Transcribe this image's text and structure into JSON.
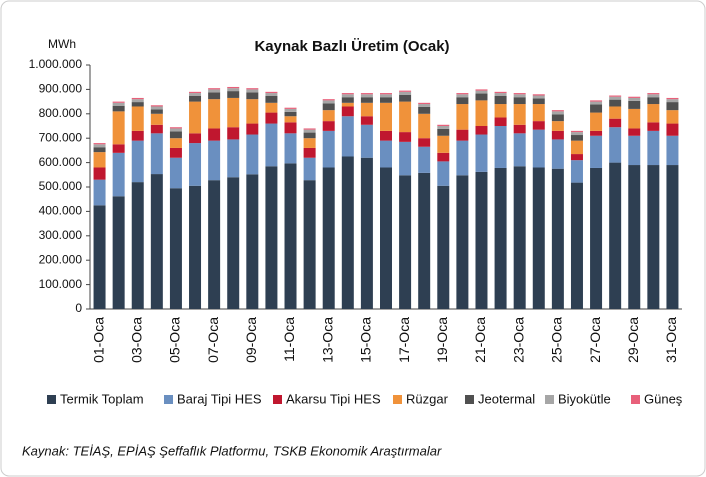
{
  "chart_data": {
    "type": "stacked_bar",
    "title": "Kaynak Bazlı Üretim (Ocak)",
    "y_axis_label": "MWh",
    "source": "Kaynak: TEİAŞ, EPİAŞ Şeffaflık Platformu, TSKB Ekonomik Araştırmalar",
    "categories": [
      "01-Oca",
      null,
      "03-Oca",
      null,
      "05-Oca",
      null,
      "07-Oca",
      null,
      "09-Oca",
      null,
      "11-Oca",
      null,
      "13-Oca",
      null,
      "15-Oca",
      null,
      "17-Oca",
      null,
      "19-Oca",
      null,
      "21-Oca",
      null,
      "23-Oca",
      null,
      "25-Oca",
      null,
      "27-Oca",
      null,
      "29-Oca",
      null,
      "31-Oca"
    ],
    "series": [
      {
        "name": "Termik Toplam",
        "color": "#2e3f52",
        "values": [
          425000,
          462000,
          520000,
          553000,
          495000,
          505000,
          528000,
          540000,
          552000,
          585000,
          597000,
          528000,
          580000,
          625000,
          620000,
          580000,
          548000,
          558000,
          505000,
          548000,
          562000,
          578000,
          585000,
          580000,
          575000,
          518000,
          578000,
          600000,
          590000,
          590000,
          590000
        ]
      },
      {
        "name": "Baraj Tipi HES",
        "color": "#6a8fc0",
        "values": [
          105000,
          178000,
          170000,
          167000,
          125000,
          175000,
          162000,
          155000,
          163000,
          175000,
          123000,
          92000,
          150000,
          165000,
          135000,
          110000,
          137000,
          107000,
          100000,
          142000,
          153000,
          172000,
          135000,
          155000,
          120000,
          92000,
          132000,
          145000,
          120000,
          140000,
          120000
        ]
      },
      {
        "name": "Akarsu Tipi HES",
        "color": "#c0172f",
        "values": [
          50000,
          35000,
          40000,
          35000,
          40000,
          40000,
          50000,
          50000,
          45000,
          45000,
          45000,
          40000,
          40000,
          40000,
          35000,
          40000,
          40000,
          35000,
          35000,
          45000,
          35000,
          35000,
          35000,
          35000,
          35000,
          25000,
          20000,
          35000,
          30000,
          35000,
          50000
        ]
      },
      {
        "name": "Rüzgar",
        "color": "#f0923a",
        "values": [
          63000,
          135000,
          100000,
          45000,
          40000,
          130000,
          120000,
          120000,
          100000,
          40000,
          25000,
          40000,
          45000,
          15000,
          55000,
          115000,
          125000,
          100000,
          70000,
          105000,
          105000,
          55000,
          85000,
          70000,
          40000,
          55000,
          75000,
          50000,
          80000,
          75000,
          55000
        ]
      },
      {
        "name": "Jeotermal",
        "color": "#505050",
        "values": [
          20000,
          23000,
          18000,
          18000,
          28000,
          23000,
          28000,
          28000,
          28000,
          28000,
          18000,
          23000,
          28000,
          23000,
          23000,
          23000,
          28000,
          28000,
          28000,
          28000,
          28000,
          33000,
          28000,
          23000,
          28000,
          23000,
          33000,
          28000,
          33000,
          28000,
          33000
        ]
      },
      {
        "name": "Biyokütle",
        "color": "#a6a6a6",
        "values": [
          12000,
          12000,
          12000,
          12000,
          12000,
          12000,
          12000,
          12000,
          12000,
          12000,
          12000,
          12000,
          12000,
          12000,
          12000,
          12000,
          12000,
          12000,
          12000,
          12000,
          12000,
          12000,
          12000,
          12000,
          12000,
          12000,
          12000,
          12000,
          12000,
          12000,
          12000
        ]
      },
      {
        "name": "Güneş",
        "color": "#e8607a",
        "values": [
          5000,
          5000,
          5000,
          5000,
          5000,
          5000,
          5000,
          5000,
          5000,
          5000,
          5000,
          5000,
          5000,
          5000,
          5000,
          5000,
          5000,
          5000,
          5000,
          5000,
          5000,
          5000,
          5000,
          5000,
          5000,
          5000,
          5000,
          5000,
          5000,
          5000,
          5000
        ]
      }
    ],
    "ylim": [
      0,
      1000000
    ],
    "yticks": [
      0,
      {
        "value": 100000,
        "label": "100.000"
      },
      {
        "value": 200000,
        "label": "200.000"
      },
      {
        "value": 300000,
        "label": "300.000"
      },
      {
        "value": 400000,
        "label": "400.000"
      },
      {
        "value": 500000,
        "label": "500.000"
      },
      {
        "value": 600000,
        "label": "600.000"
      },
      {
        "value": 700000,
        "label": "700.000"
      },
      {
        "value": 800000,
        "label": "800.000"
      },
      {
        "value": 900000,
        "label": "900.000"
      },
      {
        "value": 1000000,
        "label": "1.000.000"
      }
    ]
  }
}
